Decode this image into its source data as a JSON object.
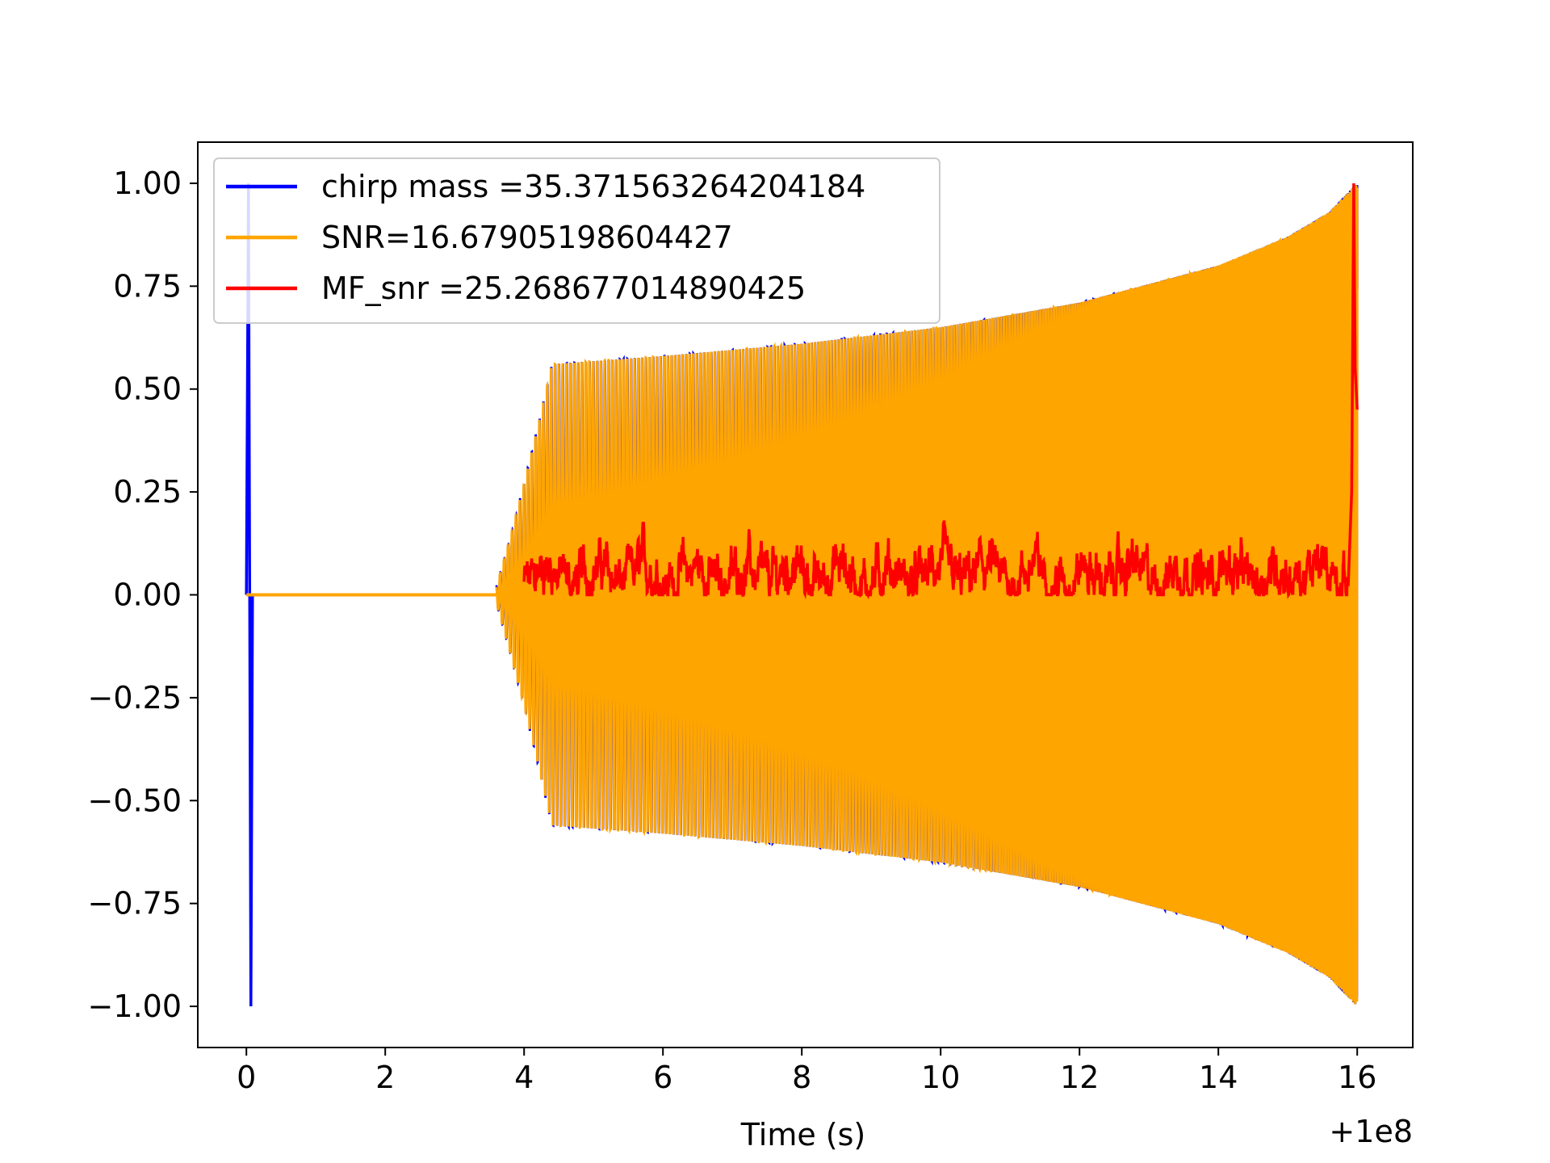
{
  "chart_data": {
    "type": "line",
    "title": "",
    "xlabel": "Time (s)",
    "ylabel": "",
    "x_offset_label": "+1e8",
    "xlim": [
      -0.7,
      16.8
    ],
    "ylim": [
      -1.1,
      1.1
    ],
    "xticks": [
      0,
      2,
      4,
      6,
      8,
      10,
      12,
      14,
      16
    ],
    "xtick_labels": [
      "0",
      "2",
      "4",
      "6",
      "8",
      "10",
      "12",
      "14",
      "16"
    ],
    "yticks": [
      1.0,
      0.75,
      0.5,
      0.25,
      0.0,
      -0.25,
      -0.5,
      -0.75,
      -1.0
    ],
    "ytick_labels": [
      "1.00",
      "0.75",
      "0.50",
      "0.25",
      "0.00",
      "−0.25",
      "−0.50",
      "−0.75",
      "−1.00"
    ],
    "grid": false,
    "legend_position": "top-left",
    "series": [
      {
        "name": "chirp mass =35.371563264204184",
        "color": "#0000ff",
        "description_points": {
          "spike_x": 0.03,
          "spike_ymax": 1.0,
          "spike_ymin": -1.0,
          "signal_start": 3.6,
          "signal_end": 16.0,
          "envelope_x": [
            3.6,
            3.8,
            4.0,
            4.2,
            4.4,
            6,
            8,
            10,
            12,
            14,
            15,
            15.6,
            16.0
          ],
          "envelope_y": [
            0.02,
            0.14,
            0.27,
            0.41,
            0.56,
            0.58,
            0.61,
            0.65,
            0.71,
            0.8,
            0.87,
            0.93,
            1.0
          ]
        }
      },
      {
        "name": "SNR=16.67905198604427",
        "color": "#ffa500",
        "description_points": {
          "flat_start": 0.0,
          "signal_start": 3.6,
          "signal_end": 16.0
        }
      },
      {
        "name": "MF_snr =25.268677014890425",
        "color": "#ff0000",
        "description_points": {
          "start": 4.0,
          "baseline": 0.05,
          "peak_x": 15.95,
          "peak_y": 1.0,
          "end_x": 16.0,
          "end_y": 0.45
        }
      }
    ]
  }
}
